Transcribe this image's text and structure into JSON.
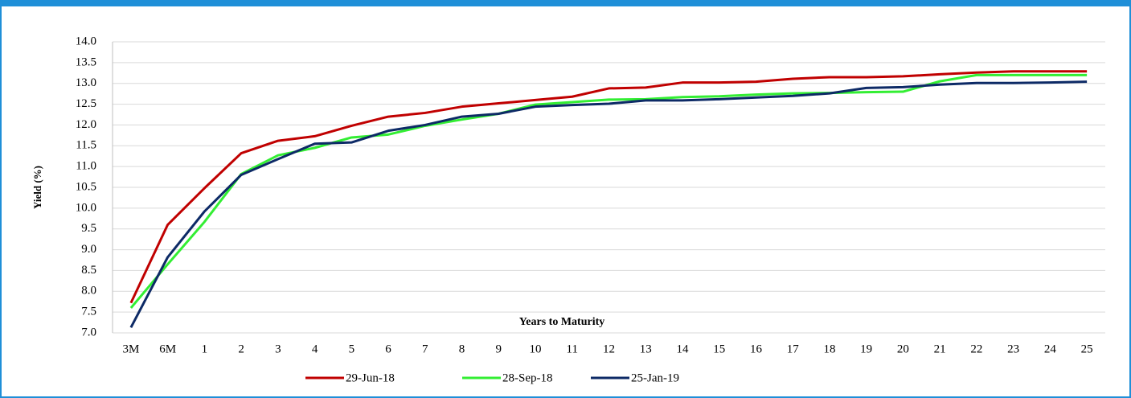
{
  "chart_data": {
    "type": "line",
    "y_label": "Yield (%)",
    "x_label": "Years to Maturity",
    "categories": [
      "3M",
      "6M",
      "1",
      "2",
      "3",
      "4",
      "5",
      "6",
      "7",
      "8",
      "9",
      "10",
      "11",
      "12",
      "13",
      "14",
      "15",
      "16",
      "17",
      "18",
      "19",
      "20",
      "21",
      "22",
      "23",
      "24",
      "25"
    ],
    "series": [
      {
        "name": "29-Jun-18",
        "color": "#c00000",
        "values": [
          7.72,
          9.6,
          10.48,
          11.32,
          11.62,
          11.73,
          11.98,
          12.2,
          12.29,
          12.44,
          12.52,
          12.6,
          12.68,
          12.88,
          12.9,
          13.02,
          13.02,
          13.04,
          13.11,
          13.15,
          13.15,
          13.17,
          13.22,
          13.26,
          13.29,
          13.29,
          13.29
        ]
      },
      {
        "name": "28-Sep-18",
        "color": "#33ee33",
        "values": [
          7.6,
          8.65,
          9.67,
          10.82,
          11.27,
          11.45,
          11.7,
          11.77,
          11.98,
          12.13,
          12.27,
          12.49,
          12.55,
          12.61,
          12.62,
          12.67,
          12.69,
          12.73,
          12.76,
          12.77,
          12.79,
          12.8,
          13.05,
          13.2,
          13.2,
          13.2,
          13.2
        ]
      },
      {
        "name": "25-Jan-19",
        "color": "#0d2a66",
        "values": [
          7.13,
          8.82,
          9.92,
          10.8,
          11.18,
          11.55,
          11.58,
          11.86,
          12.0,
          12.2,
          12.27,
          12.44,
          12.48,
          12.51,
          12.59,
          12.59,
          12.62,
          12.66,
          12.7,
          12.76,
          12.89,
          12.91,
          12.97,
          13.01,
          13.01,
          13.02,
          13.04
        ]
      }
    ],
    "ylim": [
      7,
      14
    ],
    "yticks": [
      {
        "value": 7,
        "label": "7.0"
      },
      7.5,
      {
        "value": 8,
        "label": "8.0"
      },
      8.5,
      {
        "value": 9,
        "label": "9.0"
      },
      9.5,
      {
        "value": 10,
        "label": "10.0"
      },
      10.5,
      {
        "value": 11,
        "label": "11.0"
      },
      11.5,
      {
        "value": 12,
        "label": "12.0"
      },
      12.5,
      {
        "value": 13,
        "label": "13.0"
      },
      13.5,
      {
        "value": 14,
        "label": "14.0"
      }
    ],
    "grid": true,
    "legend": "bottom"
  }
}
